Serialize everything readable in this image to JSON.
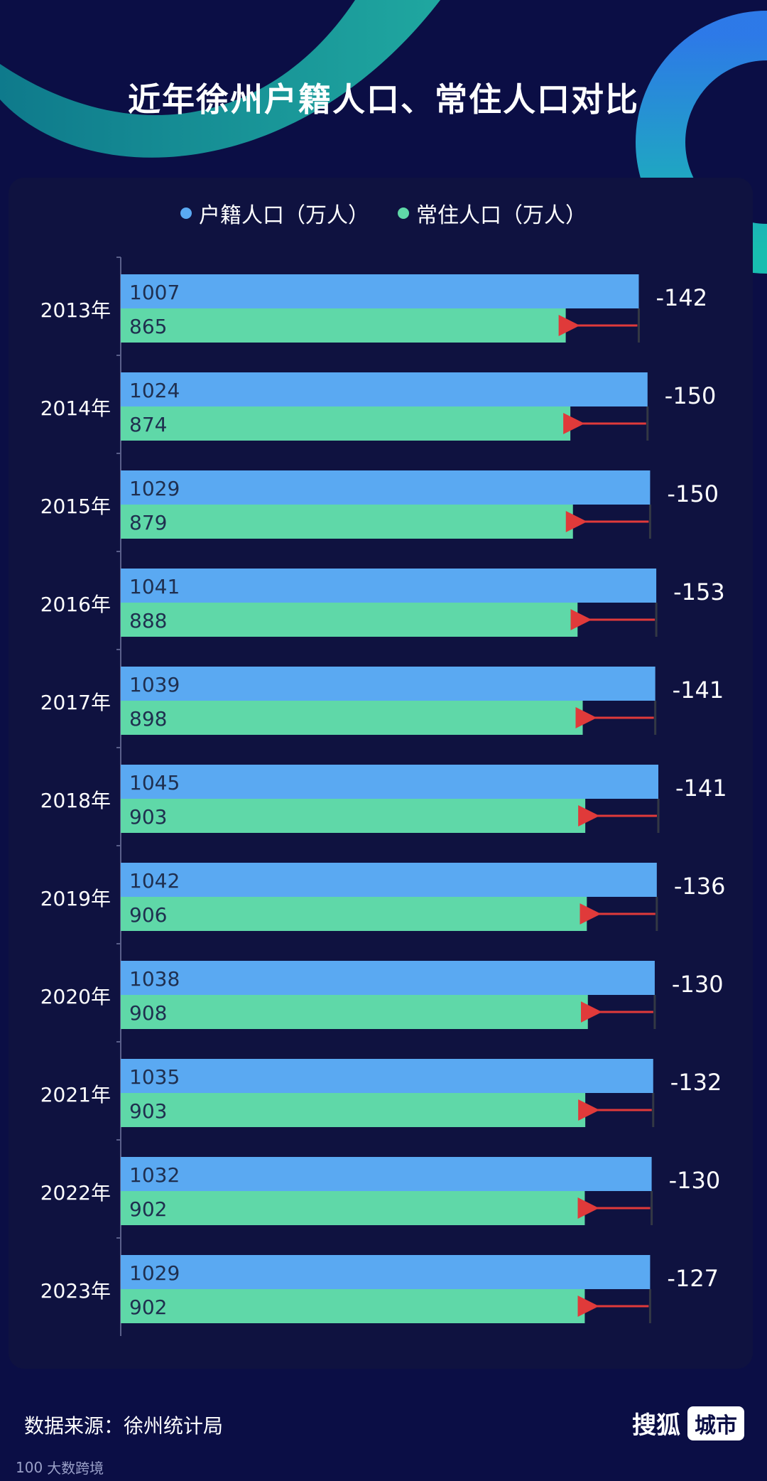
{
  "title": "近年徐州户籍人口、常住人口对比",
  "source": "数据来源：徐州统计局",
  "brand": {
    "name": "搜狐",
    "tag": "城市"
  },
  "watermark": {
    "logo": "100",
    "text": "大数跨境"
  },
  "colors": {
    "background": "#0b0e45",
    "registered": "#5aa9f2",
    "resident": "#5fd8a8",
    "arrow": "#e03a3a"
  },
  "chart_data": {
    "type": "bar",
    "orientation": "horizontal",
    "title": "近年徐州户籍人口、常住人口对比",
    "legend_position": "top",
    "categories": [
      "2013年",
      "2014年",
      "2015年",
      "2016年",
      "2017年",
      "2018年",
      "2019年",
      "2020年",
      "2021年",
      "2022年",
      "2023年"
    ],
    "series": [
      {
        "name": "户籍人口（万人）",
        "values": [
          1007,
          1024,
          1029,
          1041,
          1039,
          1045,
          1042,
          1038,
          1035,
          1032,
          1029
        ]
      },
      {
        "name": "常住人口（万人）",
        "values": [
          865,
          874,
          879,
          888,
          898,
          903,
          906,
          908,
          903,
          902,
          902
        ]
      }
    ],
    "differences": [
      "-142",
      "-150",
      "-150",
      "-153",
      "-141",
      "-141",
      "-136",
      "-130",
      "-132",
      "-130",
      "-127"
    ],
    "xlim": [
      0,
      1045
    ]
  }
}
